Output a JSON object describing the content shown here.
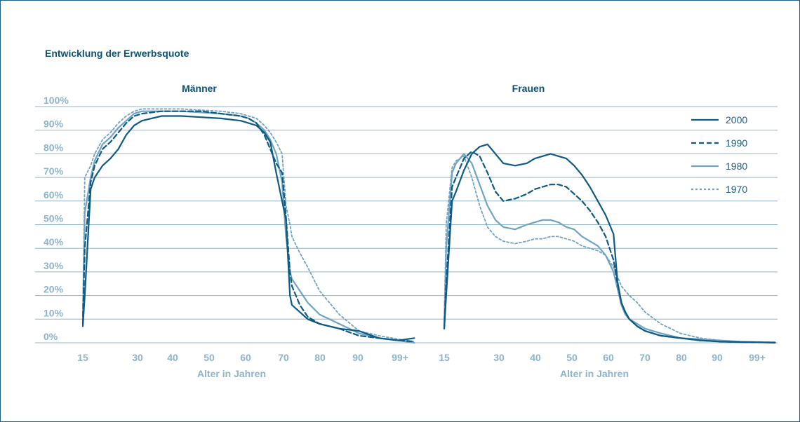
{
  "title": "Entwicklung der Erwerbsquote",
  "chart_data": {
    "type": "line",
    "ylabels": [
      "100%",
      "90%",
      "80%",
      "70%",
      "60%",
      "50%",
      "40%",
      "30%",
      "20%",
      "10%",
      "0%"
    ],
    "ylim": [
      0,
      100
    ],
    "grid": true,
    "legend_placement": "top-right",
    "legend": [
      {
        "name": "2000",
        "color": "#0e5a82",
        "dash": "solid"
      },
      {
        "name": "1990",
        "color": "#0e5a82",
        "dash": "dashed"
      },
      {
        "name": "1980",
        "color": "#6fa3c3",
        "dash": "solid"
      },
      {
        "name": "1970",
        "color": "#6fa3c3",
        "dash": "dotted"
      }
    ],
    "panels": [
      {
        "title": "Männer",
        "xlabel": "Alter in Jahren",
        "xticks": [
          "15",
          "30",
          "40",
          "50",
          "60",
          "70",
          "80",
          "90",
          "99+"
        ],
        "xlim": [
          15,
          100
        ],
        "series": [
          {
            "name": "2000",
            "x": [
              15,
              15.5,
              17,
              18,
              20,
              22,
              24,
              26,
              28,
              30,
              35,
              40,
              45,
              50,
              55,
              57,
              59,
              61,
              62.5,
              64,
              65.5,
              66.5,
              67.5,
              68,
              70,
              72,
              75,
              80,
              85,
              90,
              95,
              99
            ],
            "y": [
              7,
              20,
              65,
              70,
              75,
              78,
              82,
              88,
              92,
              94,
              96,
              96,
              95.5,
              95,
              94,
              93,
              92,
              89,
              85,
              72,
              60,
              52,
              20,
              16,
              13,
              10,
              8,
              6,
              5,
              2,
              1,
              2
            ]
          },
          {
            "name": "1990",
            "x": [
              15,
              15.5,
              17,
              18,
              20,
              22,
              24,
              26,
              28,
              30,
              35,
              40,
              45,
              50,
              55,
              57,
              59,
              61,
              62.5,
              64,
              65.5,
              66.5,
              67.5,
              68,
              70,
              72,
              75,
              80,
              85,
              90,
              95,
              99
            ],
            "y": [
              8,
              40,
              68,
              75,
              82,
              85,
              89,
              93,
              96,
              97,
              98,
              98,
              98,
              97,
              96,
              95,
              93,
              88,
              82,
              76,
              72,
              53,
              30,
              24,
              16,
              11,
              8,
              6,
              3,
              2,
              1,
              0.5
            ]
          },
          {
            "name": "1980",
            "x": [
              15,
              15.5,
              17,
              18,
              20,
              22,
              24,
              26,
              28,
              30,
              35,
              40,
              45,
              50,
              55,
              57,
              59,
              61,
              62.5,
              64,
              65.5,
              66.5,
              67.5,
              68,
              70,
              72,
              75,
              80,
              85,
              90,
              95,
              99
            ],
            "y": [
              10,
              55,
              70,
              77,
              84,
              87,
              91,
              94,
              97,
              98,
              98,
              98,
              97.5,
              97,
              96,
              95,
              93,
              90,
              86,
              80,
              68,
              45,
              30,
              27,
              22,
              17,
              12,
              8,
              4,
              2,
              1,
              0
            ]
          },
          {
            "name": "1970",
            "x": [
              15,
              15.5,
              17,
              18,
              20,
              22,
              24,
              26,
              28,
              30,
              35,
              40,
              45,
              50,
              55,
              57,
              59,
              61,
              62.5,
              64,
              65.5,
              66.5,
              67.5,
              68,
              70,
              72,
              75,
              80,
              85,
              90,
              95,
              99
            ],
            "y": [
              12,
              70,
              75,
              80,
              86,
              89,
              93,
              96,
              98,
              99,
              99,
              99,
              98.5,
              98,
              97,
              96,
              95,
              92,
              89,
              85,
              80,
              58,
              50,
              45,
              38,
              32,
              22,
              12,
              5,
              3,
              1.5,
              0.5
            ]
          }
        ]
      },
      {
        "title": "Frauen",
        "xlabel": "Alter in Jahren",
        "xticks": [
          "15",
          "30",
          "40",
          "50",
          "60",
          "70",
          "80",
          "90",
          "99+"
        ],
        "xlim": [
          15,
          100
        ],
        "series": [
          {
            "name": "2000",
            "x": [
              15,
              15.5,
              17,
              18,
              20,
              22,
              24,
              26,
              28,
              30,
              33,
              36,
              38,
              40,
              42,
              44,
              46,
              48,
              50,
              52,
              54,
              56,
              58,
              59,
              60,
              61,
              62,
              64,
              66,
              70,
              75,
              80,
              85,
              90,
              95,
              99
            ],
            "y": [
              6,
              20,
              60,
              64,
              73,
              80,
              83,
              84,
              80,
              76,
              75,
              76,
              78,
              79,
              80,
              79,
              78,
              75,
              71,
              66,
              60,
              54,
              46,
              26,
              17,
              13,
              10,
              7,
              5,
              3,
              2,
              1,
              0.5,
              0.3,
              0.2,
              0
            ]
          },
          {
            "name": "1990",
            "x": [
              15,
              15.5,
              17,
              18,
              20,
              22,
              24,
              26,
              28,
              30,
              33,
              36,
              38,
              40,
              42,
              44,
              46,
              48,
              50,
              52,
              54,
              56,
              58,
              59,
              60,
              61,
              62,
              64,
              66,
              70,
              75,
              80,
              85,
              90,
              95,
              99
            ],
            "y": [
              6,
              25,
              66,
              70,
              78,
              81,
              79,
              72,
              64,
              60,
              61,
              63,
              65,
              66,
              67,
              67,
              66,
              63,
              60,
              56,
              51,
              45,
              35,
              25,
              17,
              13,
              10,
              7,
              5,
              3,
              2,
              1,
              0.5,
              0.3,
              0.2,
              0.1
            ]
          },
          {
            "name": "1980",
            "x": [
              15,
              15.5,
              17,
              18,
              20,
              22,
              24,
              26,
              28,
              30,
              33,
              36,
              38,
              40,
              42,
              44,
              46,
              48,
              50,
              52,
              54,
              56,
              58,
              59,
              60,
              61,
              62,
              64,
              66,
              70,
              75,
              80,
              85,
              90,
              95,
              99
            ],
            "y": [
              7,
              40,
              72,
              76,
              80,
              76,
              67,
              58,
              52,
              49,
              48,
              50,
              51,
              52,
              52,
              51,
              49,
              48,
              45,
              43,
              41,
              37,
              30,
              23,
              16,
              12,
              10,
              8,
              6,
              4,
              2,
              1.5,
              1,
              0.5,
              0.3,
              0.2
            ]
          },
          {
            "name": "1970",
            "x": [
              15,
              15.5,
              17,
              18,
              20,
              22,
              24,
              26,
              28,
              30,
              33,
              36,
              38,
              40,
              42,
              44,
              46,
              48,
              50,
              52,
              54,
              56,
              58,
              59,
              60,
              61,
              62,
              64,
              66,
              70,
              75,
              80,
              85,
              90,
              95,
              99
            ],
            "y": [
              8,
              50,
              74,
              77,
              79,
              70,
              58,
              49,
              45,
              43,
              42,
              43,
              44,
              44,
              45,
              45,
              44,
              43,
              41,
              40,
              39,
              37,
              32,
              28,
              24,
              22,
              20,
              17,
              13,
              8,
              4,
              2,
              1,
              0.5,
              0.3,
              0.2
            ]
          }
        ]
      }
    ]
  }
}
